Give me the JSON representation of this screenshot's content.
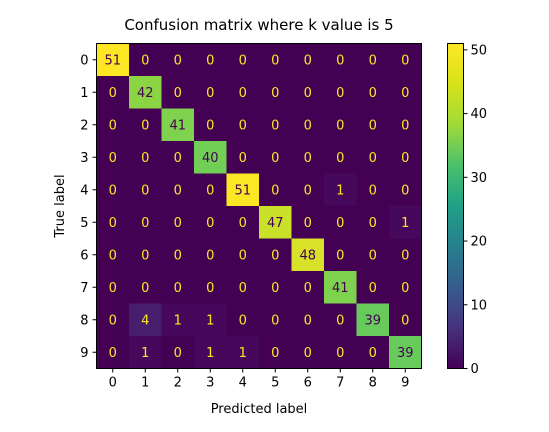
{
  "chart_data": {
    "type": "heatmap",
    "title": "Confusion matrix where k value is 5",
    "xlabel": "Predicted label",
    "ylabel": "True label",
    "x_categories": [
      "0",
      "1",
      "2",
      "3",
      "4",
      "5",
      "6",
      "7",
      "8",
      "9"
    ],
    "y_categories": [
      "0",
      "1",
      "2",
      "3",
      "4",
      "5",
      "6",
      "7",
      "8",
      "9"
    ],
    "matrix": [
      [
        51,
        0,
        0,
        0,
        0,
        0,
        0,
        0,
        0,
        0
      ],
      [
        0,
        42,
        0,
        0,
        0,
        0,
        0,
        0,
        0,
        0
      ],
      [
        0,
        0,
        41,
        0,
        0,
        0,
        0,
        0,
        0,
        0
      ],
      [
        0,
        0,
        0,
        40,
        0,
        0,
        0,
        0,
        0,
        0
      ],
      [
        0,
        0,
        0,
        0,
        51,
        0,
        0,
        1,
        0,
        0
      ],
      [
        0,
        0,
        0,
        0,
        0,
        47,
        0,
        0,
        0,
        1
      ],
      [
        0,
        0,
        0,
        0,
        0,
        0,
        48,
        0,
        0,
        0
      ],
      [
        0,
        0,
        0,
        0,
        0,
        0,
        0,
        41,
        0,
        0
      ],
      [
        0,
        4,
        1,
        1,
        0,
        0,
        0,
        0,
        39,
        0
      ],
      [
        0,
        1,
        0,
        1,
        1,
        0,
        0,
        0,
        0,
        39
      ]
    ],
    "colormap": "viridis",
    "colorbar": {
      "range": [
        0,
        51
      ],
      "ticks": [
        0,
        10,
        20,
        30,
        40,
        50
      ]
    },
    "grid": false,
    "legend": "colorbar-right"
  }
}
